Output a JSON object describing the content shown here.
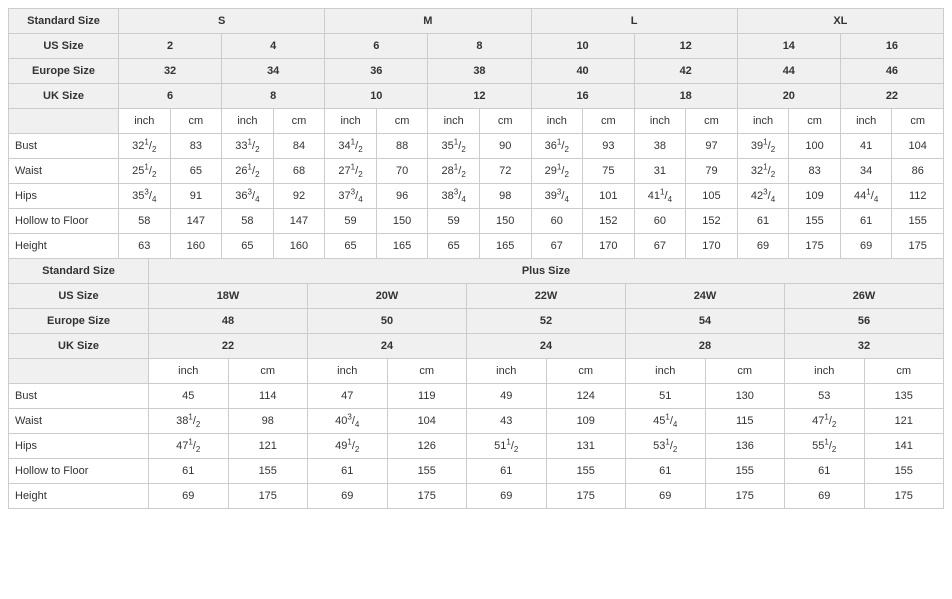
{
  "labels": {
    "standard_size": "Standard Size",
    "us_size": "US Size",
    "europe_size": "Europe Size",
    "uk_size": "UK Size",
    "plus_size": "Plus Size",
    "inch": "inch",
    "cm": "cm"
  },
  "row_labels": [
    "Bust",
    "Waist",
    "Hips",
    "Hollow to Floor",
    "Height"
  ],
  "standard": {
    "sizes": [
      "S",
      "M",
      "L",
      "XL"
    ],
    "us": [
      "2",
      "4",
      "6",
      "8",
      "10",
      "12",
      "14",
      "16"
    ],
    "eu": [
      "32",
      "34",
      "36",
      "38",
      "40",
      "42",
      "44",
      "46"
    ],
    "uk": [
      "6",
      "8",
      "10",
      "12",
      "16",
      "18",
      "20",
      "22"
    ],
    "rows": [
      {
        "name": "Bust",
        "cells": [
          [
            "32 1/2",
            "83"
          ],
          [
            "33 1/2",
            "84"
          ],
          [
            "34 1/2",
            "88"
          ],
          [
            "35 1/2",
            "90"
          ],
          [
            "36 1/2",
            "93"
          ],
          [
            "38",
            "97"
          ],
          [
            "39 1/2",
            "100"
          ],
          [
            "41",
            "104"
          ]
        ]
      },
      {
        "name": "Waist",
        "cells": [
          [
            "25 1/2",
            "65"
          ],
          [
            "26 1/2",
            "68"
          ],
          [
            "27 1/2",
            "70"
          ],
          [
            "28 1/2",
            "72"
          ],
          [
            "29 1/2",
            "75"
          ],
          [
            "31",
            "79"
          ],
          [
            "32 1/2",
            "83"
          ],
          [
            "34",
            "86"
          ]
        ]
      },
      {
        "name": "Hips",
        "cells": [
          [
            "35 3/4",
            "91"
          ],
          [
            "36 3/4",
            "92"
          ],
          [
            "37 3/4",
            "96"
          ],
          [
            "38 3/4",
            "98"
          ],
          [
            "39 3/4",
            "101"
          ],
          [
            "41 1/4",
            "105"
          ],
          [
            "42 3/4",
            "109"
          ],
          [
            "44 1/4",
            "112"
          ]
        ]
      },
      {
        "name": "Hollow to Floor",
        "cells": [
          [
            "58",
            "147"
          ],
          [
            "58",
            "147"
          ],
          [
            "59",
            "150"
          ],
          [
            "59",
            "150"
          ],
          [
            "60",
            "152"
          ],
          [
            "60",
            "152"
          ],
          [
            "61",
            "155"
          ],
          [
            "61",
            "155"
          ]
        ]
      },
      {
        "name": "Height",
        "cells": [
          [
            "63",
            "160"
          ],
          [
            "65",
            "160"
          ],
          [
            "65",
            "165"
          ],
          [
            "65",
            "165"
          ],
          [
            "67",
            "170"
          ],
          [
            "67",
            "170"
          ],
          [
            "69",
            "175"
          ],
          [
            "69",
            "175"
          ]
        ]
      }
    ]
  },
  "plus": {
    "us": [
      "18W",
      "20W",
      "22W",
      "24W",
      "26W"
    ],
    "eu": [
      "48",
      "50",
      "52",
      "54",
      "56"
    ],
    "uk": [
      "22",
      "24",
      "24",
      "28",
      "32"
    ],
    "rows": [
      {
        "name": "Bust",
        "cells": [
          [
            "45",
            "114"
          ],
          [
            "47",
            "119"
          ],
          [
            "49",
            "124"
          ],
          [
            "51",
            "130"
          ],
          [
            "53",
            "135"
          ]
        ]
      },
      {
        "name": "Waist",
        "cells": [
          [
            "38 1/2",
            "98"
          ],
          [
            "40 3/4",
            "104"
          ],
          [
            "43",
            "109"
          ],
          [
            "45 1/4",
            "115"
          ],
          [
            "47 1/2",
            "121"
          ]
        ]
      },
      {
        "name": "Hips",
        "cells": [
          [
            "47 1/2",
            "121"
          ],
          [
            "49 1/2",
            "126"
          ],
          [
            "51 1/2",
            "131"
          ],
          [
            "53 1/2",
            "136"
          ],
          [
            "55 1/2",
            "141"
          ]
        ]
      },
      {
        "name": "Hollow to Floor",
        "cells": [
          [
            "61",
            "155"
          ],
          [
            "61",
            "155"
          ],
          [
            "61",
            "155"
          ],
          [
            "61",
            "155"
          ],
          [
            "61",
            "155"
          ]
        ]
      },
      {
        "name": "Height",
        "cells": [
          [
            "69",
            "175"
          ],
          [
            "69",
            "175"
          ],
          [
            "69",
            "175"
          ],
          [
            "69",
            "175"
          ],
          [
            "69",
            "175"
          ]
        ]
      }
    ]
  },
  "style": {
    "header_bg": "#f0f0f0",
    "border_color": "#cccccc",
    "text_color": "#333333",
    "font_size": 11
  }
}
